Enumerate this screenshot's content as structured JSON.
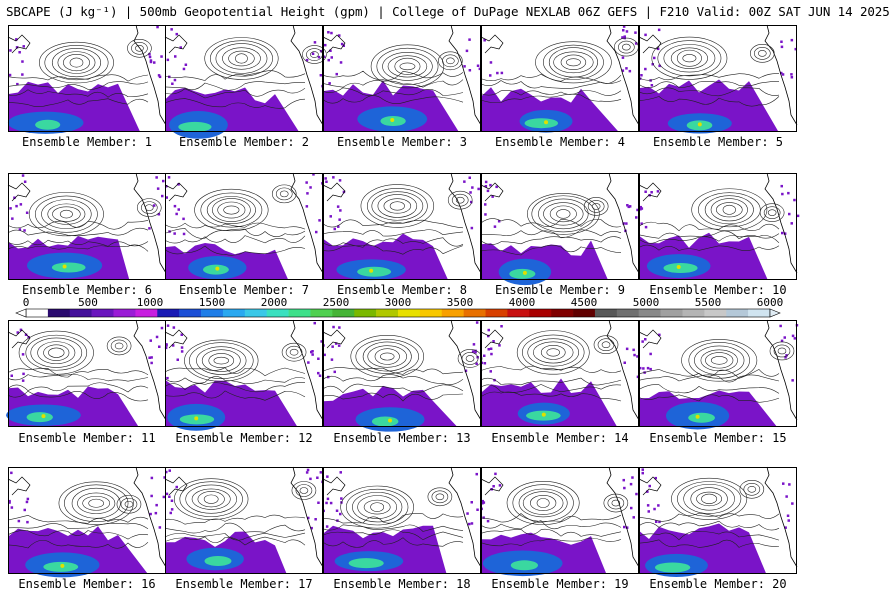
{
  "title": "SBCAPE (J kg⁻¹) | 500mb Geopotential Height (gpm) | College of DuPage NEXLAB 06Z GEFS | F210 Valid: 00Z SAT JUN 14 2025",
  "member_label_prefix": "Ensemble Member:",
  "members": [
    1,
    2,
    3,
    4,
    5,
    6,
    7,
    8,
    9,
    10,
    11,
    12,
    13,
    14,
    15,
    16,
    17,
    18,
    19,
    20
  ],
  "colorbar": {
    "labels": [
      "0",
      "500",
      "1000",
      "1500",
      "2000",
      "2500",
      "3000",
      "3500",
      "4000",
      "4500",
      "5000",
      "5500",
      "6000"
    ],
    "colors": [
      "#ffffff",
      "#2a0a6e",
      "#44109a",
      "#6a16be",
      "#9a1cd6",
      "#c81ee0",
      "#1a1ab4",
      "#1c4fd6",
      "#1f7ee8",
      "#2aa8f0",
      "#3ac8e8",
      "#3ae0c0",
      "#3ee08a",
      "#50d050",
      "#46b436",
      "#7ab800",
      "#b0c800",
      "#e8e000",
      "#f8c800",
      "#f8a000",
      "#e87000",
      "#d84000",
      "#c81010",
      "#a80000",
      "#800000",
      "#600000",
      "#585858",
      "#707070",
      "#888888",
      "#a0a0a0",
      "#b4b4b4",
      "#c8c8c8",
      "#b4c8d8",
      "#d0e4f0"
    ]
  },
  "colors": {
    "cape_low": "#7a14c8",
    "cape_mid": "#1e64d8",
    "cape_high": "#3ad8a0",
    "cape_peak": "#e0e000",
    "contour": "#222222",
    "border": "#000000"
  }
}
